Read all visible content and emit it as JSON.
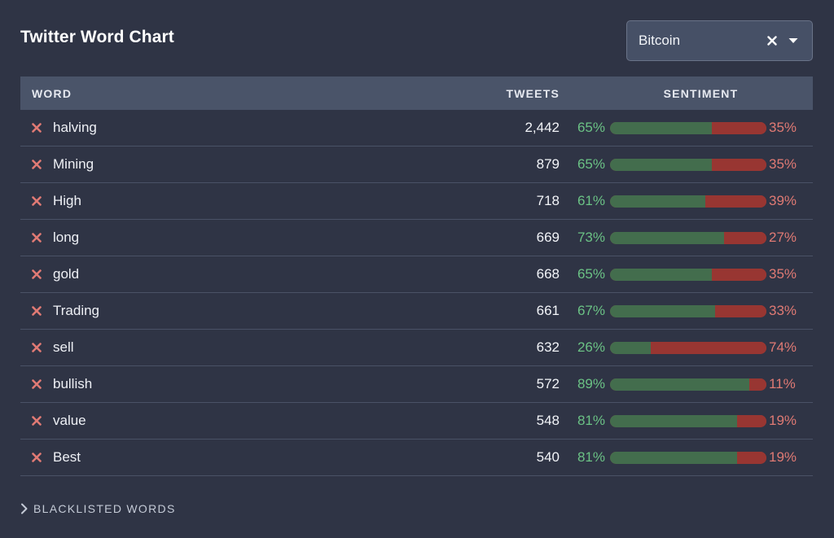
{
  "title": "Twitter Word Chart",
  "selector": {
    "value": "Bitcoin",
    "clear_icon": "close-icon",
    "caret_icon": "caret-down-icon"
  },
  "table": {
    "headers": {
      "word": "WORD",
      "tweets": "TWEETS",
      "sentiment": "SENTIMENT"
    },
    "rows": [
      {
        "word": "halving",
        "tweets": "2,442",
        "positive": "65%",
        "negative": "35%",
        "positive_fraction": 0.65
      },
      {
        "word": "Mining",
        "tweets": "879",
        "positive": "65%",
        "negative": "35%",
        "positive_fraction": 0.65
      },
      {
        "word": "High",
        "tweets": "718",
        "positive": "61%",
        "negative": "39%",
        "positive_fraction": 0.61
      },
      {
        "word": "long",
        "tweets": "669",
        "positive": "73%",
        "negative": "27%",
        "positive_fraction": 0.73
      },
      {
        "word": "gold",
        "tweets": "668",
        "positive": "65%",
        "negative": "35%",
        "positive_fraction": 0.65
      },
      {
        "word": "Trading",
        "tweets": "661",
        "positive": "67%",
        "negative": "33%",
        "positive_fraction": 0.67
      },
      {
        "word": "sell",
        "tweets": "632",
        "positive": "26%",
        "negative": "74%",
        "positive_fraction": 0.26
      },
      {
        "word": "bullish",
        "tweets": "572",
        "positive": "89%",
        "negative": "11%",
        "positive_fraction": 0.89
      },
      {
        "word": "value",
        "tweets": "548",
        "positive": "81%",
        "negative": "19%",
        "positive_fraction": 0.81
      },
      {
        "word": "Best",
        "tweets": "540",
        "positive": "81%",
        "negative": "19%",
        "positive_fraction": 0.81
      }
    ]
  },
  "blacklist": {
    "label": "BLACKLISTED WORDS",
    "icon": "chevron-right-icon"
  },
  "colors": {
    "background": "#2f3445",
    "header": "#4a5469",
    "positive_text": "#6bc285",
    "negative_text": "#e07a74",
    "positive_bar": "#436d4d",
    "negative_bar": "#983632",
    "remove_icon": "#e07a74"
  }
}
